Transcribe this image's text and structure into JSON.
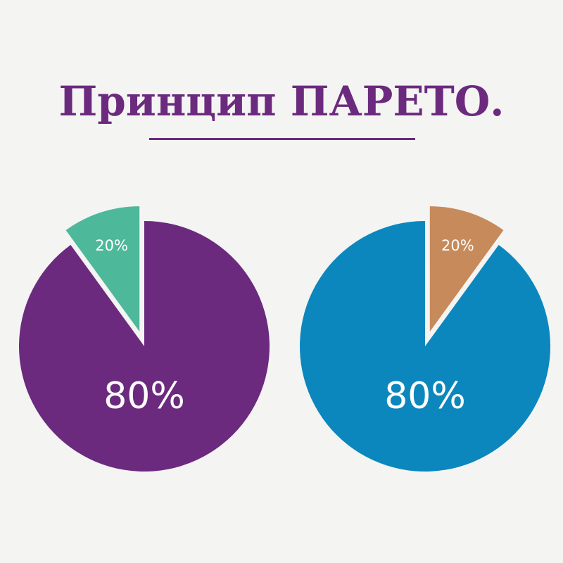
{
  "title": "Принцип ПАРЕТО.",
  "colors": {
    "background": "#f4f4f3",
    "title": "#6b2a7e",
    "rule": "#6b2a7e"
  },
  "chart_data": [
    {
      "type": "pie",
      "slices": [
        {
          "label": "80%",
          "value": 80,
          "color": "#6b2a7e"
        },
        {
          "label": "20%",
          "value": 20,
          "color": "#4db89a",
          "exploded": true
        }
      ]
    },
    {
      "type": "pie",
      "slices": [
        {
          "label": "80%",
          "value": 80,
          "color": "#0b87bd"
        },
        {
          "label": "20%",
          "value": 20,
          "color": "#c78a5a",
          "exploded": true
        }
      ]
    }
  ]
}
